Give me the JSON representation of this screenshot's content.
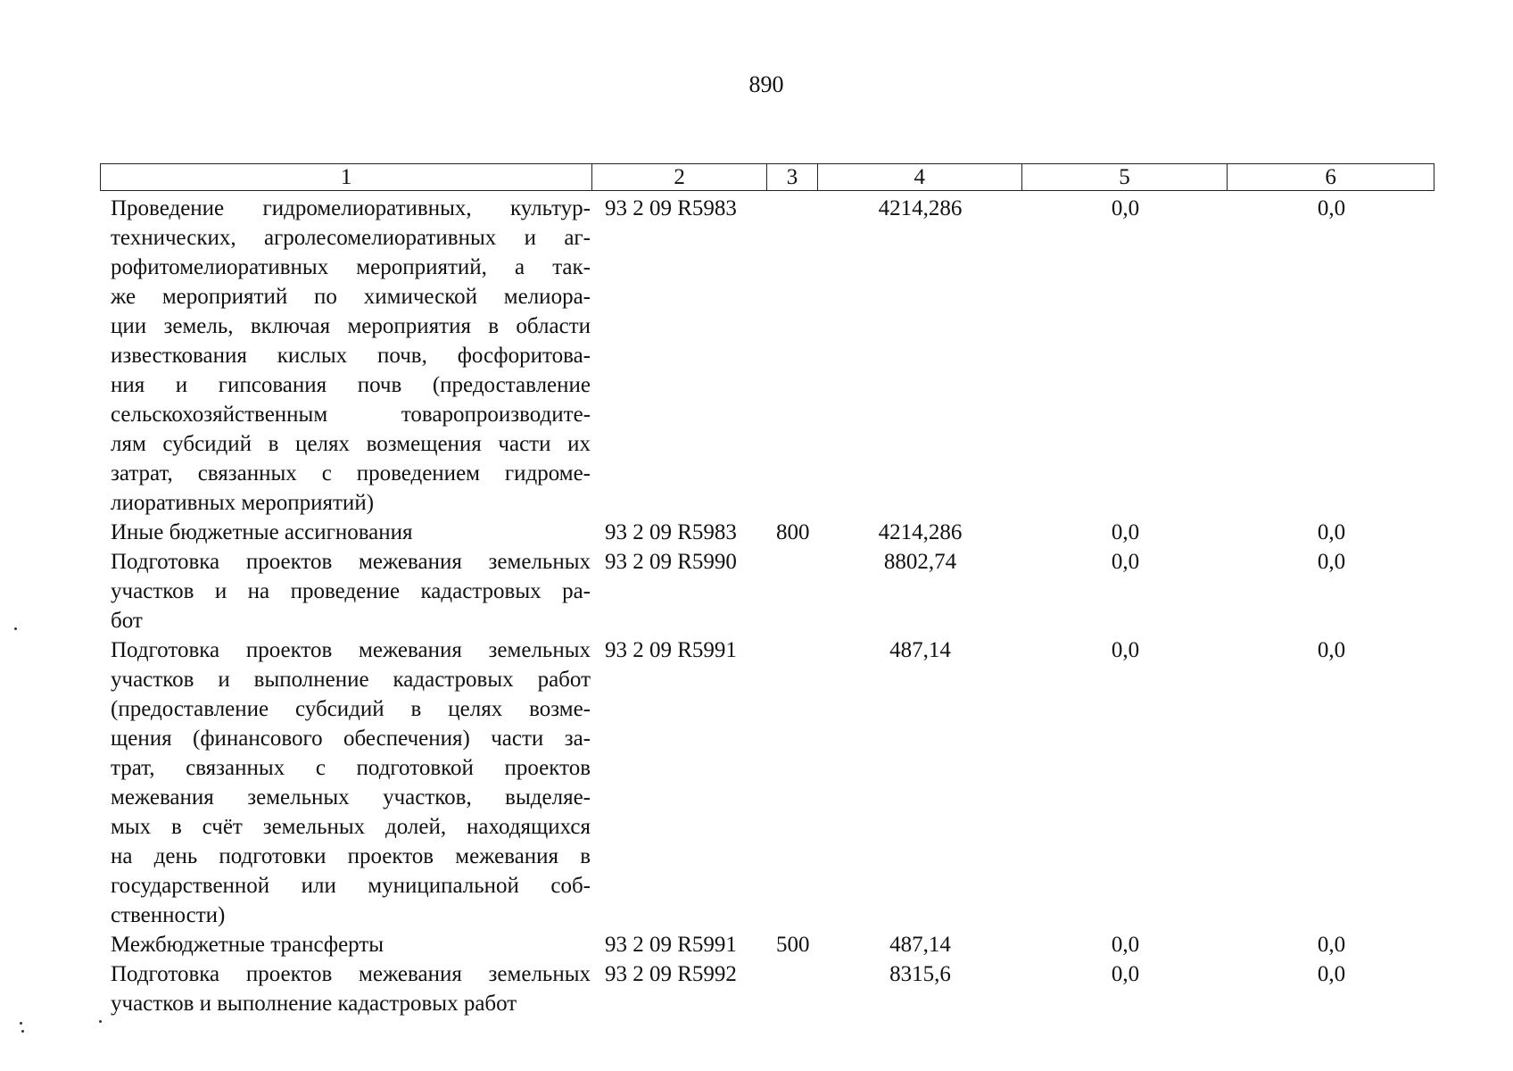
{
  "page_number": "890",
  "table": {
    "headers": [
      "1",
      "2",
      "3",
      "4",
      "5",
      "6"
    ],
    "rows": [
      {
        "lines": [
          "Проведение гидромелиоративных, культур-",
          "технических, агролесомелиоративных и аг-",
          "рофитомелиоративных мероприятий, а так-",
          "же мероприятий по химической мелиора-",
          "ции земель, включая мероприятия в области",
          "известкования кислых почв, фосфоритова-",
          "ния и гипсования почв (предоставление",
          "сельскохозяйственным товаропроизводите-",
          "лям субсидий в целях возмещения части их",
          "затрат, связанных с проведением гидроме-",
          "лиоративных мероприятий)"
        ],
        "code": "93 2 09 R5983",
        "type": "",
        "amount": "4214,286",
        "col5": "0,0",
        "col6": "0,0"
      },
      {
        "lines": [
          "Иные бюджетные ассигнования"
        ],
        "code": "93 2 09 R5983",
        "type": "800",
        "amount": "4214,286",
        "col5": "0,0",
        "col6": "0,0"
      },
      {
        "lines": [
          "Подготовка проектов межевания земельных",
          "участков и на проведение кадастровых ра-",
          "бот"
        ],
        "code": "93 2 09 R5990",
        "type": "",
        "amount": "8802,74",
        "col5": "0,0",
        "col6": "0,0"
      },
      {
        "lines": [
          "Подготовка проектов межевания земельных",
          "участков и выполнение кадастровых работ",
          "(предоставление субсидий в целях возме-",
          "щения (финансового обеспечения) части за-",
          "трат, связанных с подготовкой проектов",
          "межевания земельных участков, выделяе-",
          "мых в счёт земельных долей, находящихся",
          "на день подготовки проектов межевания в",
          "государственной или муниципальной соб-",
          "ственности)"
        ],
        "code": "93 2 09 R5991",
        "type": "",
        "amount": "487,14",
        "col5": "0,0",
        "col6": "0,0"
      },
      {
        "lines": [
          "Межбюджетные трансферты"
        ],
        "code": "93 2 09 R5991",
        "type": "500",
        "amount": "487,14",
        "col5": "0,0",
        "col6": "0,0"
      },
      {
        "lines": [
          "Подготовка проектов межевания земельных",
          "участков и выполнение кадастровых работ"
        ],
        "code": "93 2 09 R5992",
        "type": "",
        "amount": "8315,6",
        "col5": "0,0",
        "col6": "0,0"
      }
    ]
  }
}
